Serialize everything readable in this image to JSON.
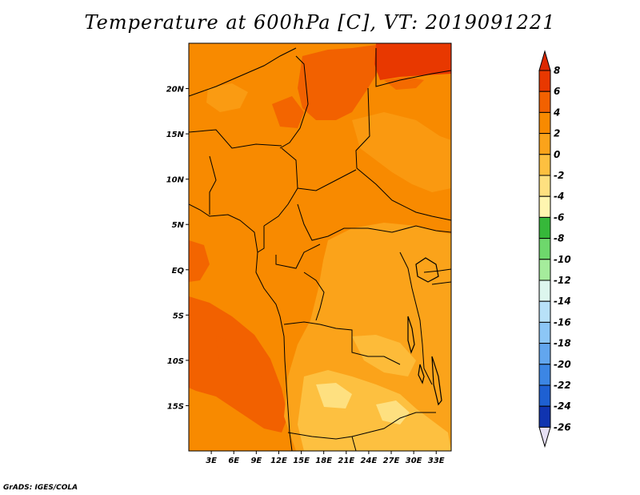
{
  "title": "Temperature at 600hPa [C], VT: 2019091221",
  "credit": "GrADS: IGES/COLA",
  "map": {
    "lon_range": [
      0,
      35
    ],
    "lat_range": [
      -20,
      25
    ],
    "lat_ticks": [
      {
        "value": 20,
        "label": "20N"
      },
      {
        "value": 15,
        "label": "15N"
      },
      {
        "value": 10,
        "label": "10N"
      },
      {
        "value": 5,
        "label": "5N"
      },
      {
        "value": 0,
        "label": "EQ"
      },
      {
        "value": -5,
        "label": "5S"
      },
      {
        "value": -10,
        "label": "10S"
      },
      {
        "value": -15,
        "label": "15S"
      }
    ],
    "lon_ticks": [
      {
        "value": 3,
        "label": "3E"
      },
      {
        "value": 6,
        "label": "6E"
      },
      {
        "value": 9,
        "label": "9E"
      },
      {
        "value": 12,
        "label": "12E"
      },
      {
        "value": 15,
        "label": "15E"
      },
      {
        "value": 18,
        "label": "18E"
      },
      {
        "value": 21,
        "label": "21E"
      },
      {
        "value": 24,
        "label": "24E"
      },
      {
        "value": 27,
        "label": "27E"
      },
      {
        "value": 30,
        "label": "30E"
      },
      {
        "value": 33,
        "label": "33E"
      }
    ]
  },
  "colorbar": {
    "levels": [
      "8",
      "6",
      "4",
      "2",
      "0",
      "-2",
      "-4",
      "-6",
      "-8",
      "-10",
      "-12",
      "-14",
      "-16",
      "-18",
      "-20",
      "-22",
      "-24",
      "-26"
    ],
    "colors": [
      "#e83800",
      "#f26100",
      "#f88a00",
      "#fba31a",
      "#fdc040",
      "#fee080",
      "#fff5b0",
      "#36b83a",
      "#6ed86c",
      "#a5ec9c",
      "#ddf6ee",
      "#b8e1f8",
      "#8cc6f6",
      "#62a6ee",
      "#3c86e4",
      "#1e60d2",
      "#1034b0",
      "#081878"
    ],
    "top_color": "#dc2800",
    "bottom_color": "#e6e0f4"
  }
}
